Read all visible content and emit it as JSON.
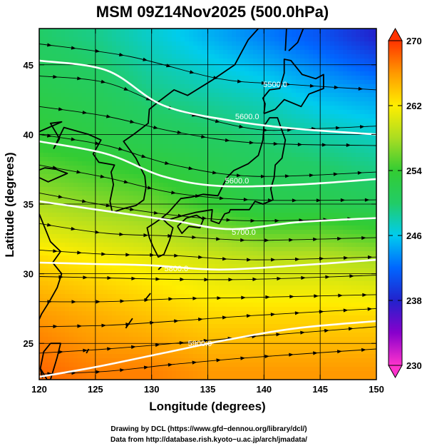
{
  "chart_data": {
    "type": "heatmap",
    "title": "MSM 09Z14Nov2025 (500.0hPa)",
    "xlabel": "Longitude (degrees)",
    "ylabel": "Latitude  (degrees)",
    "xlim": [
      120,
      150
    ],
    "ylim": [
      22.4,
      47.6
    ],
    "x_ticks": [
      120,
      125,
      130,
      135,
      140,
      145,
      150
    ],
    "x_tick_labels": [
      "120",
      "125",
      "130",
      "135",
      "140",
      "145",
      "150"
    ],
    "y_ticks": [
      25,
      30,
      35,
      40,
      45
    ],
    "y_tick_labels": [
      "25",
      "30",
      "35",
      "40",
      "45"
    ],
    "grid": true,
    "shaded_field": {
      "colorbar_range": [
        230,
        270
      ],
      "colorbar_ticks": [
        230,
        238,
        246,
        254,
        262,
        270
      ],
      "colorbar_tick_labels": [
        "230",
        "238",
        "246",
        "254",
        "262",
        "270"
      ],
      "field": [
        {
          "lat": 47,
          "values": [
            250,
            249,
            247,
            245,
            243,
            241,
            238
          ]
        },
        {
          "lat": 43,
          "values": [
            252,
            251,
            249,
            248,
            247,
            245,
            244
          ]
        },
        {
          "lat": 39,
          "values": [
            254,
            253,
            252,
            251,
            250,
            249,
            248
          ]
        },
        {
          "lat": 35,
          "values": [
            258,
            257,
            256,
            254,
            252,
            252,
            251
          ]
        },
        {
          "lat": 31,
          "values": [
            263,
            262,
            261,
            260,
            259,
            259,
            258
          ]
        },
        {
          "lat": 27,
          "values": [
            266,
            265,
            264,
            263,
            263,
            263,
            263
          ]
        },
        {
          "lat": 23,
          "values": [
            268,
            267,
            267,
            266,
            266,
            266,
            266
          ]
        }
      ],
      "field_lons": [
        120,
        125,
        130,
        135,
        140,
        145,
        150
      ]
    },
    "contours": [
      {
        "label": "5500.0",
        "points": [
          [
            120,
            45.3
          ],
          [
            126,
            44.6
          ],
          [
            131,
            42.1
          ],
          [
            137,
            41.0
          ],
          [
            143,
            40.4
          ],
          [
            150,
            40.0
          ]
        ]
      },
      {
        "label": "5600.0",
        "points": [
          [
            120,
            39.5
          ],
          [
            126,
            38.6
          ],
          [
            131,
            37.0
          ],
          [
            136,
            36.3
          ],
          [
            143,
            36.4
          ],
          [
            150,
            36.8
          ]
        ]
      },
      {
        "label": "5700.0",
        "points": [
          [
            120,
            35.2
          ],
          [
            126,
            34.5
          ],
          [
            132,
            33.8
          ],
          [
            137,
            33.2
          ],
          [
            143,
            33.7
          ],
          [
            150,
            34.0
          ]
        ]
      },
      {
        "label": "5800.0",
        "points": [
          [
            120,
            30.8
          ],
          [
            125,
            30.7
          ],
          [
            130,
            30.6
          ],
          [
            136,
            30.3
          ],
          [
            143,
            30.6
          ],
          [
            150,
            31.0
          ]
        ]
      },
      {
        "label": "5900.0",
        "points": [
          [
            120,
            22.6
          ],
          [
            125,
            23.3
          ],
          [
            131,
            24.3
          ],
          [
            137,
            25.3
          ],
          [
            143,
            26.1
          ],
          [
            150,
            26.6
          ]
        ]
      }
    ],
    "contour_labels_shown": [
      {
        "text": "5500.0",
        "lon": 141.0,
        "lat": 43.6
      },
      {
        "text": "5600.0",
        "lon": 138.5,
        "lat": 41.3
      },
      {
        "text": "5600.0",
        "lon": 137.6,
        "lat": 36.7
      },
      {
        "text": "5700.0",
        "lon": 138.2,
        "lat": 33.0
      },
      {
        "text": "5800.0",
        "lon": 132.2,
        "lat": 30.4
      },
      {
        "text": "5900.0",
        "lon": 134.3,
        "lat": 25.0
      }
    ],
    "wind_field": {
      "description": "streamlines",
      "lines": [
        [
          [
            120,
            46.5
          ],
          [
            128,
            45.6
          ],
          [
            136,
            44.0
          ],
          [
            142,
            43.6
          ],
          [
            150,
            43.2
          ]
        ],
        [
          [
            120,
            44.2
          ],
          [
            126,
            43.7
          ],
          [
            132,
            41.8
          ],
          [
            139,
            40.4
          ],
          [
            144,
            40.4
          ],
          [
            150,
            40.6
          ]
        ],
        [
          [
            120,
            42.0
          ],
          [
            126,
            41.3
          ],
          [
            132,
            40.2
          ],
          [
            139,
            39.4
          ],
          [
            150,
            39.2
          ]
        ],
        [
          [
            120,
            40.0
          ],
          [
            126,
            39.2
          ],
          [
            132,
            37.8
          ],
          [
            139,
            37.0
          ],
          [
            150,
            37.3
          ]
        ],
        [
          [
            120,
            37.8
          ],
          [
            126,
            36.9
          ],
          [
            132,
            35.8
          ],
          [
            139,
            35.3
          ],
          [
            150,
            35.3
          ]
        ],
        [
          [
            120,
            35.8
          ],
          [
            126,
            34.9
          ],
          [
            132,
            34.2
          ],
          [
            139,
            33.8
          ],
          [
            150,
            34.0
          ]
        ],
        [
          [
            120,
            33.6
          ],
          [
            126,
            32.9
          ],
          [
            132,
            32.7
          ],
          [
            139,
            32.4
          ],
          [
            150,
            32.6
          ]
        ],
        [
          [
            120,
            31.7
          ],
          [
            126,
            31.4
          ],
          [
            132,
            31.3
          ],
          [
            139,
            31.0
          ],
          [
            150,
            31.2
          ]
        ],
        [
          [
            120,
            29.8
          ],
          [
            126,
            29.7
          ],
          [
            132,
            29.6
          ],
          [
            139,
            29.6
          ],
          [
            150,
            29.9
          ]
        ],
        [
          [
            120,
            28.0
          ],
          [
            126,
            28.0
          ],
          [
            132,
            28.2
          ],
          [
            139,
            28.3
          ],
          [
            150,
            28.5
          ]
        ],
        [
          [
            120,
            26.2
          ],
          [
            126,
            26.3
          ],
          [
            132,
            26.6
          ],
          [
            139,
            27.0
          ],
          [
            150,
            27.5
          ]
        ],
        [
          [
            120,
            24.3
          ],
          [
            126,
            24.6
          ],
          [
            132,
            25.0
          ],
          [
            139,
            25.5
          ],
          [
            150,
            26.2
          ]
        ],
        [
          [
            120,
            22.8
          ],
          [
            126,
            23.0
          ],
          [
            132,
            23.5
          ],
          [
            139,
            24.0
          ],
          [
            150,
            24.6
          ]
        ]
      ]
    },
    "colors": {
      "colormap": [
        "#ff33cc",
        "#8800cc",
        "#2222cc",
        "#0066ff",
        "#00ccee",
        "#22cc66",
        "#33cc33",
        "#aadd22",
        "#ffee00",
        "#ff9900",
        "#ff3300"
      ],
      "contour_color": "#ffffff",
      "streamline_color": "#000000",
      "coastline_color": "#000000"
    }
  },
  "credits": {
    "line1": "Drawing by DCL (https://www.gfd−dennou.org/library/dcl/)",
    "line2": "Data from http://database.rish.kyoto−u.ac.jp/arch/jmadata/"
  }
}
